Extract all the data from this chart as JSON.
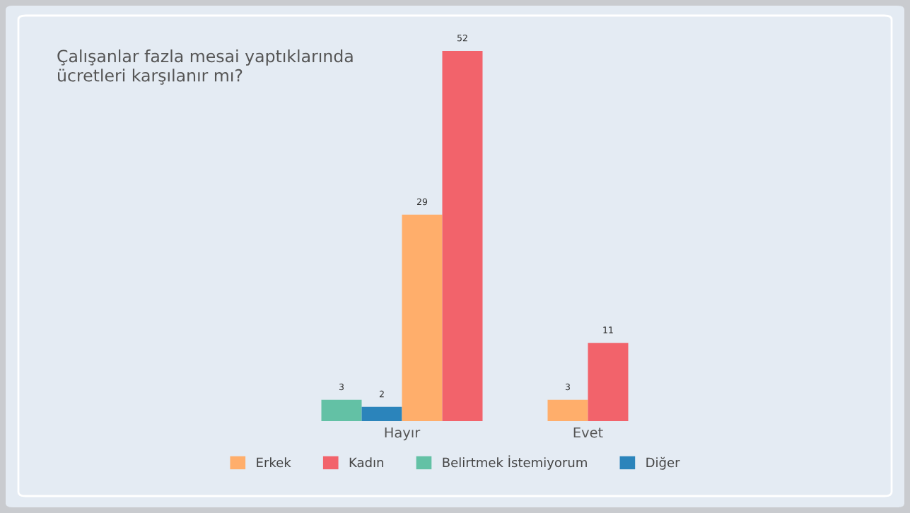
{
  "chart_data": {
    "type": "bar",
    "title": "Çalışanlar fazla mesai yaptıklarında\nücretleri karşılanır mı?",
    "categories": [
      "Hayır",
      "Evet"
    ],
    "series": [
      {
        "name": "Erkek",
        "color": "#ffae6b",
        "values": [
          29,
          3
        ]
      },
      {
        "name": "Kadın",
        "color": "#f2636b",
        "values": [
          52,
          11
        ]
      },
      {
        "name": "Belirtmek İstemiyorum",
        "color": "#63c1a5",
        "values": [
          3,
          null
        ]
      },
      {
        "name": "Diğer",
        "color": "#2b84bb",
        "values": [
          2,
          null
        ]
      }
    ],
    "data_labels": true,
    "legend": "bottom",
    "grid": false
  }
}
